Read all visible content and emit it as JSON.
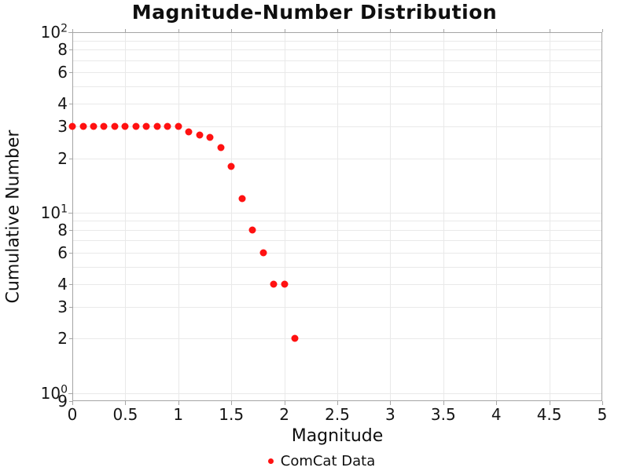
{
  "title": "Magnitude-Number Distribution",
  "legend": {
    "label": "ComCat Data"
  },
  "colors": {
    "marker": "#ff1111",
    "grid": "#e9e9e9",
    "axis": "#a5a5a5",
    "text": "#111111"
  },
  "chart_data": {
    "type": "scatter",
    "title": "Magnitude-Number Distribution",
    "xlabel": "Magnitude",
    "ylabel": "Cumulative Number",
    "series": [
      {
        "name": "ComCat Data",
        "marker": "circle",
        "color": "#ff1111",
        "x": [
          0.0,
          0.1,
          0.2,
          0.3,
          0.4,
          0.5,
          0.6,
          0.7,
          0.8,
          0.9,
          1.0,
          1.1,
          1.2,
          1.3,
          1.4,
          1.5,
          1.6,
          1.7,
          1.8,
          1.9,
          2.0,
          2.1
        ],
        "y": [
          30,
          30,
          30,
          30,
          30,
          30,
          30,
          30,
          30,
          30,
          30,
          28,
          27,
          26,
          23,
          18,
          12,
          8,
          6,
          4,
          4,
          2
        ]
      }
    ],
    "xlim": [
      0,
      5
    ],
    "ylim": [
      0.9,
      100
    ],
    "yscale": "log",
    "grid": true,
    "legend_position": "bottom-center",
    "x_ticks": [
      {
        "value": 0,
        "label": "0"
      },
      {
        "value": 0.5,
        "label": "0.5"
      },
      {
        "value": 1,
        "label": "1"
      },
      {
        "value": 1.5,
        "label": "1.5"
      },
      {
        "value": 2,
        "label": "2"
      },
      {
        "value": 2.5,
        "label": "2.5"
      },
      {
        "value": 3,
        "label": "3"
      },
      {
        "value": 3.5,
        "label": "3.5"
      },
      {
        "value": 4,
        "label": "4"
      },
      {
        "value": 4.5,
        "label": "4.5"
      },
      {
        "value": 5,
        "label": "5"
      }
    ],
    "y_ticks_major": [
      {
        "value": 100,
        "base": "10",
        "exp": "2"
      },
      {
        "value": 10,
        "base": "10",
        "exp": "1"
      },
      {
        "value": 1,
        "base": "10",
        "exp": "0"
      }
    ],
    "y_ticks_minor_labeled": [
      {
        "value": 80,
        "label": "8"
      },
      {
        "value": 60,
        "label": "6"
      },
      {
        "value": 40,
        "label": "4"
      },
      {
        "value": 30,
        "label": "3"
      },
      {
        "value": 20,
        "label": "2"
      },
      {
        "value": 8,
        "label": "8"
      },
      {
        "value": 6,
        "label": "6"
      },
      {
        "value": 4,
        "label": "4"
      },
      {
        "value": 3,
        "label": "3"
      },
      {
        "value": 2,
        "label": "2"
      },
      {
        "value": 0.9,
        "label": "9"
      }
    ],
    "y_gridline_values": [
      1,
      2,
      3,
      4,
      5,
      6,
      7,
      8,
      9,
      10,
      20,
      30,
      40,
      50,
      60,
      70,
      80,
      90,
      100
    ],
    "x_gridline_values": [
      0.5,
      1,
      1.5,
      2,
      2.5,
      3,
      3.5,
      4,
      4.5
    ]
  }
}
